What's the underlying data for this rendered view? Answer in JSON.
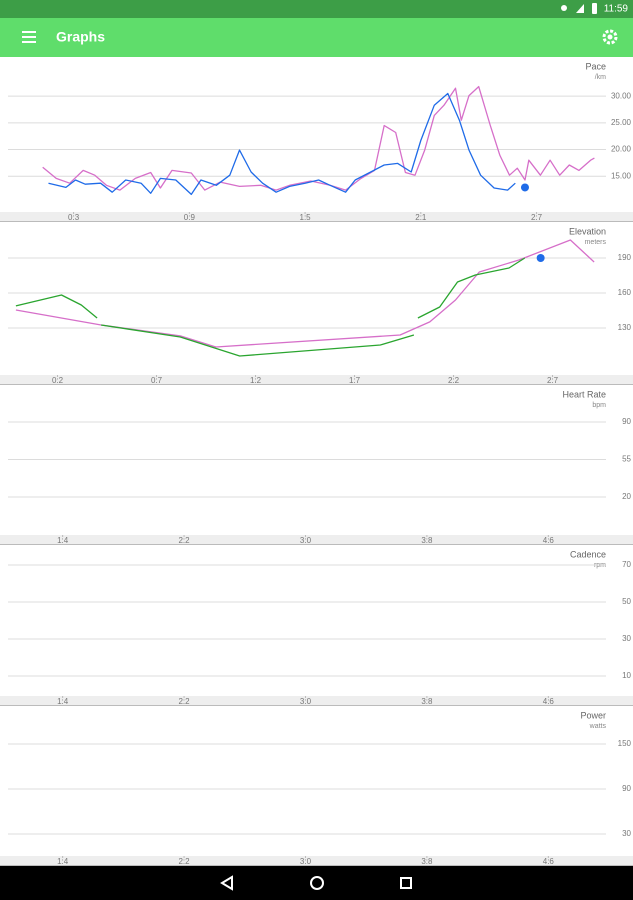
{
  "status_bar": {
    "time": "11:59"
  },
  "app_bar": {
    "title": "Graphs"
  },
  "chart_data": [
    {
      "type": "line",
      "title": "Pace",
      "subtitle": "/km",
      "xlim": [
        -0.4,
        30.6
      ],
      "xticks": [
        {
          "value": 3,
          "label": "0:3"
        },
        {
          "value": 9,
          "label": "0:9"
        },
        {
          "value": 15,
          "label": "1:5"
        },
        {
          "value": 21,
          "label": "2:1"
        },
        {
          "value": 27,
          "label": "2:7"
        }
      ],
      "ylim": [
        8.3,
        36.4
      ],
      "yticks": [
        {
          "value": 15,
          "label": "15.00"
        },
        {
          "value": 20,
          "label": "20.00"
        },
        {
          "value": 25,
          "label": "25.00"
        },
        {
          "value": 30,
          "label": "30.00"
        }
      ],
      "grid": true,
      "series": [
        {
          "color": "#d66fc9",
          "x": [
            1.4,
            2.1,
            2.8,
            3.5,
            4.1,
            4.7,
            5.4,
            6.2,
            7.0,
            7.5,
            8.1,
            9.1,
            9.8,
            10.6,
            11.6,
            12.7,
            13.5,
            14.2,
            15.3,
            16.3,
            17.1,
            17.9,
            18.6,
            19.1,
            19.7,
            20.2,
            20.7,
            21.2,
            21.7,
            22.2,
            22.8,
            23.1,
            23.5,
            24.0,
            24.6,
            25.1,
            25.6,
            26.0,
            26.4,
            26.6,
            27.2,
            27.7,
            28.2,
            28.7,
            29.2,
            29.8,
            30.0
          ],
          "values": [
            16.7,
            14.6,
            13.7,
            16.1,
            15.2,
            13.3,
            12.4,
            14.6,
            15.7,
            12.8,
            16.1,
            15.6,
            12.4,
            13.9,
            13.1,
            13.3,
            12.4,
            13.3,
            14.1,
            13.3,
            12.4,
            14.6,
            16.1,
            24.5,
            23.2,
            15.7,
            15.2,
            19.9,
            26.4,
            28.3,
            31.5,
            25.5,
            30.1,
            31.8,
            24.5,
            18.9,
            15.2,
            16.5,
            14.3,
            18.0,
            15.2,
            18.0,
            15.2,
            17.1,
            16.1,
            18.0,
            18.4
          ]
        },
        {
          "color": "#1f6be8",
          "x": [
            1.7,
            2.6,
            3.1,
            3.6,
            4.4,
            5.0,
            5.7,
            6.5,
            7.0,
            7.5,
            8.3,
            9.1,
            9.6,
            10.4,
            11.1,
            11.6,
            12.2,
            12.8,
            13.5,
            14.2,
            15.0,
            15.7,
            16.3,
            17.1,
            17.6,
            18.4,
            19.1,
            19.8,
            20.5,
            21.0,
            21.7,
            22.4,
            23.0,
            23.5,
            24.1,
            24.8,
            25.5,
            25.9
          ],
          "values": [
            13.7,
            12.9,
            14.3,
            13.5,
            13.7,
            12.0,
            14.3,
            13.7,
            11.8,
            14.6,
            14.3,
            11.6,
            14.3,
            13.3,
            15.2,
            19.9,
            15.8,
            13.7,
            12.0,
            13.1,
            13.7,
            14.3,
            13.3,
            12.0,
            14.3,
            15.8,
            17.1,
            17.4,
            15.8,
            21.7,
            28.3,
            30.5,
            25.5,
            19.9,
            15.2,
            12.8,
            12.4,
            13.7
          ]
        }
      ],
      "markers": [
        {
          "x": 26.4,
          "y": 12.9,
          "color": "#1f6be8"
        }
      ]
    },
    {
      "type": "line",
      "title": "Elevation",
      "subtitle": "meters",
      "xlim": [
        -0.5,
        29.7
      ],
      "xticks": [
        {
          "value": 2,
          "label": "0:2"
        },
        {
          "value": 7,
          "label": "0:7"
        },
        {
          "value": 12,
          "label": "1:2"
        },
        {
          "value": 17,
          "label": "1:7"
        },
        {
          "value": 22,
          "label": "2:2"
        },
        {
          "value": 27,
          "label": "2:7"
        }
      ],
      "ylim": [
        89.7,
        218.3
      ],
      "yticks": [
        130,
        160,
        190
      ],
      "grid": true,
      "series": [
        {
          "color": "#d66fc9",
          "x": [
            -0.1,
            4.2,
            8.2,
            10.0,
            19.3,
            20.8,
            22.1,
            23.3,
            25.3,
            27.9,
            29.1
          ],
          "values": [
            145.4,
            132.6,
            123.2,
            113.7,
            124.0,
            135.2,
            154.0,
            178.0,
            188.3,
            205.4,
            186.6
          ]
        },
        {
          "color": "#2aa52f",
          "x": [
            -0.1,
            2.2,
            3.2,
            4.0,
            null,
            4.2,
            8.2,
            11.2,
            18.3,
            20.0,
            null,
            20.2,
            21.3,
            22.2,
            23.1,
            24.8,
            25.6
          ],
          "values": [
            148.9,
            158.3,
            149.7,
            138.6,
            null,
            132.6,
            122.3,
            106.0,
            115.4,
            124.0,
            null,
            138.6,
            148.0,
            169.4,
            175.4,
            181.4,
            190.0
          ]
        }
      ],
      "markers": [
        {
          "x": 26.4,
          "y": 190.0,
          "color": "#1f6be8"
        }
      ]
    },
    {
      "type": "line",
      "title": "Heart Rate",
      "subtitle": "bpm",
      "xlim": [
        10.4,
        49.8
      ],
      "xticks": [
        {
          "value": 14,
          "label": "1:4"
        },
        {
          "value": 22,
          "label": "2:2"
        },
        {
          "value": 30,
          "label": "3:0"
        },
        {
          "value": 38,
          "label": "3:8"
        },
        {
          "value": 46,
          "label": "4:6"
        }
      ],
      "ylim": [
        -15.5,
        121.7
      ],
      "yticks": [
        20,
        55,
        90
      ],
      "grid": true,
      "series": []
    },
    {
      "type": "line",
      "title": "Cadence",
      "subtitle": "rpm",
      "xlim": [
        10.4,
        49.8
      ],
      "xticks": [
        {
          "value": 14,
          "label": "1:4"
        },
        {
          "value": 22,
          "label": "2:2"
        },
        {
          "value": 30,
          "label": "3:0"
        },
        {
          "value": 38,
          "label": "3:8"
        },
        {
          "value": 46,
          "label": "4:6"
        }
      ],
      "ylim": [
        -0.8,
        79.2
      ],
      "yticks": [
        10,
        30,
        50,
        70
      ],
      "grid": true,
      "series": []
    },
    {
      "type": "line",
      "title": "Power",
      "subtitle": "watts",
      "xlim": [
        10.4,
        49.8
      ],
      "xticks": [
        {
          "value": 14,
          "label": "1:4"
        },
        {
          "value": 22,
          "label": "2:2"
        },
        {
          "value": 30,
          "label": "3:0"
        },
        {
          "value": 38,
          "label": "3:8"
        },
        {
          "value": 46,
          "label": "4:6"
        }
      ],
      "ylim": [
        0.7,
        196.7
      ],
      "yticks": [
        30,
        90,
        150
      ],
      "grid": true,
      "series": []
    }
  ]
}
